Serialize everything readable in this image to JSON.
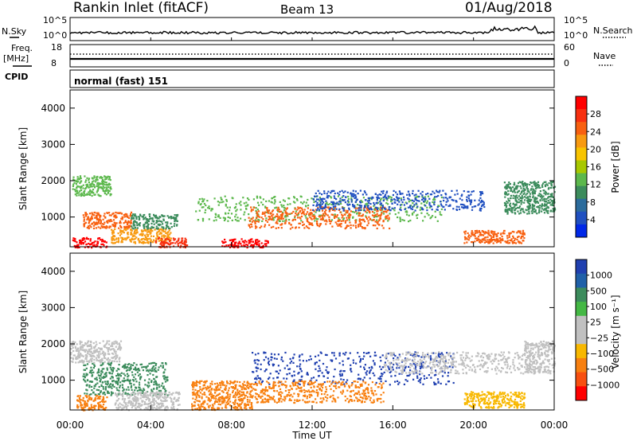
{
  "header": {
    "station": "Rankin Inlet (fitACF)",
    "beam": "Beam 13",
    "date": "01/Aug/2018"
  },
  "top_panels": {
    "nsky_label": "N.Sky",
    "nsearch_label": "N.Search",
    "nsky_ticks": [
      "10^5",
      "10^0"
    ],
    "nsearch_ticks": [
      "10^5",
      "10^0"
    ],
    "freq_label_1": "Freq.",
    "freq_label_2": "[MHz]",
    "freq_ticks": [
      "18",
      "8"
    ],
    "nave_label": "Nave",
    "nave_ticks": [
      "60",
      "0"
    ],
    "cpid_label": "CPID",
    "cpid_value": "normal (fast) 151"
  },
  "chart_data": [
    {
      "type": "heatmap",
      "title": "",
      "ylabel": "Slant Range [km]",
      "xlabel": "",
      "ylim": [
        180,
        4500
      ],
      "yticks": [
        "4000",
        "3000",
        "2000",
        "1000"
      ],
      "colorbar": {
        "label": "Power [dB]",
        "ticks": [
          "28",
          "24",
          "20",
          "16",
          "12",
          "8",
          "4"
        ],
        "colors": [
          "#ff0000",
          "#f83010",
          "#f86010",
          "#f89a10",
          "#f8c400",
          "#a8c800",
          "#5cb84c",
          "#3c8c5c",
          "#2c6c9c",
          "#2050c0",
          "#0028e8"
        ]
      },
      "regions": [
        {
          "t0": 0.1,
          "t1": 2.0,
          "r0": 1600,
          "r1": 2150,
          "color": "#5cb84c"
        },
        {
          "t0": 0.6,
          "t1": 3.0,
          "r0": 700,
          "r1": 1150,
          "color": "#f86010"
        },
        {
          "t0": 0.1,
          "t1": 1.8,
          "r0": 180,
          "r1": 450,
          "color": "#ff0000"
        },
        {
          "t0": 2.0,
          "t1": 5.0,
          "r0": 300,
          "r1": 700,
          "color": "#f89a10"
        },
        {
          "t0": 3.0,
          "t1": 5.3,
          "r0": 700,
          "r1": 1100,
          "color": "#3c8c5c"
        },
        {
          "t0": 4.2,
          "t1": 5.8,
          "r0": 180,
          "r1": 450,
          "color": "#f83010"
        },
        {
          "t0": 6.2,
          "t1": 18.5,
          "r0": 900,
          "r1": 1600,
          "color": "#5cb84c"
        },
        {
          "t0": 8.8,
          "t1": 15.8,
          "r0": 700,
          "r1": 1300,
          "color": "#f86010"
        },
        {
          "t0": 7.5,
          "t1": 9.8,
          "r0": 180,
          "r1": 420,
          "color": "#ff0000"
        },
        {
          "t0": 12.0,
          "t1": 20.5,
          "r0": 1200,
          "r1": 1750,
          "color": "#2050c0"
        },
        {
          "t0": 19.5,
          "t1": 22.5,
          "r0": 300,
          "r1": 650,
          "color": "#f86010"
        },
        {
          "t0": 21.5,
          "t1": 24.0,
          "r0": 1100,
          "r1": 2000,
          "color": "#3c8c5c"
        }
      ]
    },
    {
      "type": "heatmap",
      "title": "",
      "ylabel": "Slant Range [km]",
      "xlabel": "Time UT",
      "ylim": [
        180,
        4500
      ],
      "yticks": [
        "4000",
        "3000",
        "2000",
        "1000"
      ],
      "xticks": [
        "00:00",
        "04:00",
        "08:00",
        "12:00",
        "16:00",
        "20:00",
        "00:00"
      ],
      "colorbar": {
        "label": "Velocity [m s⁻¹]",
        "ticks": [
          "1000",
          "500",
          "100",
          "25",
          "−25",
          "−100",
          "−500",
          "−1000"
        ],
        "colors": [
          "#2040b0",
          "#2060a8",
          "#3c8c5c",
          "#44b844",
          "#c0c0c0",
          "#c0c0c0",
          "#f8b800",
          "#f88010",
          "#f85010",
          "#ff0000"
        ]
      },
      "regions": [
        {
          "t0": 0.0,
          "t1": 2.5,
          "r0": 1500,
          "r1": 2100,
          "color": "#c0c0c0"
        },
        {
          "t0": 0.6,
          "t1": 4.8,
          "r0": 600,
          "r1": 1500,
          "color": "#3c8c5c"
        },
        {
          "t0": 0.3,
          "t1": 1.8,
          "r0": 180,
          "r1": 600,
          "color": "#f88010"
        },
        {
          "t0": 2.2,
          "t1": 5.4,
          "r0": 200,
          "r1": 700,
          "color": "#c0c0c0"
        },
        {
          "t0": 6.0,
          "t1": 9.0,
          "r0": 200,
          "r1": 1000,
          "color": "#f88010"
        },
        {
          "t0": 9.0,
          "t1": 19.0,
          "r0": 900,
          "r1": 1800,
          "color": "#2040b0"
        },
        {
          "t0": 9.0,
          "t1": 15.5,
          "r0": 400,
          "r1": 1000,
          "color": "#f88010"
        },
        {
          "t0": 15.5,
          "t1": 23.0,
          "r0": 1200,
          "r1": 1800,
          "color": "#c0c0c0"
        },
        {
          "t0": 19.5,
          "t1": 22.5,
          "r0": 250,
          "r1": 700,
          "color": "#f8b800"
        },
        {
          "t0": 22.5,
          "t1": 24.0,
          "r0": 1200,
          "r1": 2100,
          "color": "#c0c0c0"
        }
      ]
    }
  ]
}
